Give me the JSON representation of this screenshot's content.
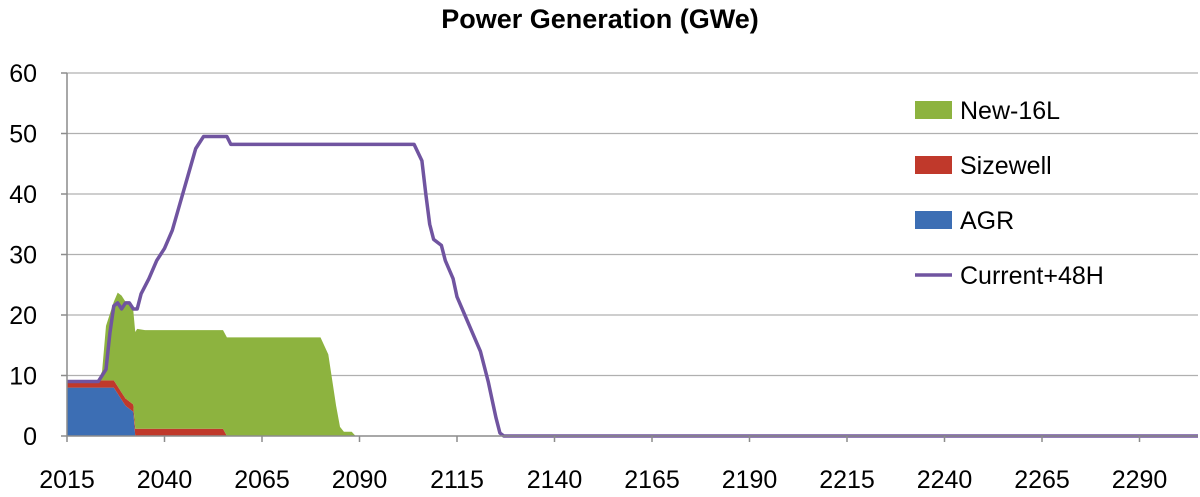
{
  "chart_data": {
    "type": "area",
    "title": "Power Generation (GWe)",
    "xlabel": "",
    "ylabel": "",
    "xlim": [
      2015,
      2305
    ],
    "ylim": [
      0,
      60
    ],
    "x_ticks": [
      2015,
      2040,
      2065,
      2090,
      2115,
      2140,
      2165,
      2190,
      2215,
      2240,
      2265,
      2290
    ],
    "y_ticks": [
      0,
      10,
      20,
      30,
      40,
      50,
      60
    ],
    "grid": "horizontal",
    "legend": "right",
    "series": [
      {
        "name": "AGR",
        "kind": "stacked-area",
        "color": "#3c6eb4",
        "points": [
          [
            2015,
            8
          ],
          [
            2020,
            8
          ],
          [
            2027,
            8
          ],
          [
            2028,
            7
          ],
          [
            2029,
            6
          ],
          [
            2030,
            5
          ],
          [
            2031,
            4.5
          ],
          [
            2032,
            4
          ],
          [
            2032.5,
            0
          ]
        ]
      },
      {
        "name": "Sizewell",
        "kind": "stacked-area",
        "color": "#c0392b",
        "points": [
          [
            2015,
            1.2
          ],
          [
            2020,
            1.2
          ],
          [
            2027,
            1.2
          ],
          [
            2028,
            1.2
          ],
          [
            2029,
            1.2
          ],
          [
            2030,
            1.2
          ],
          [
            2031,
            1.2
          ],
          [
            2032,
            1.2
          ],
          [
            2033,
            1.2
          ],
          [
            2035,
            1.2
          ],
          [
            2040,
            1.2
          ],
          [
            2055,
            1.2
          ],
          [
            2056,
            0
          ]
        ]
      },
      {
        "name": "New-16L",
        "kind": "stacked-area",
        "color": "#8db33f",
        "points": [
          [
            2015,
            0
          ],
          [
            2023,
            0
          ],
          [
            2024,
            1.5
          ],
          [
            2025,
            9
          ],
          [
            2026,
            11
          ],
          [
            2027,
            13
          ],
          [
            2028,
            15.5
          ],
          [
            2029,
            16
          ],
          [
            2030,
            16
          ],
          [
            2031,
            16.5
          ],
          [
            2032,
            15.5
          ],
          [
            2033,
            16.5
          ],
          [
            2035,
            16.3
          ],
          [
            2040,
            16.3
          ],
          [
            2055,
            16.3
          ],
          [
            2056,
            16.3
          ],
          [
            2080,
            16.3
          ],
          [
            2082,
            13.5
          ],
          [
            2084,
            5
          ],
          [
            2085,
            1.5
          ],
          [
            2086,
            0.7
          ],
          [
            2088,
            0.7
          ],
          [
            2089,
            0
          ]
        ]
      },
      {
        "name": "Current+48H",
        "kind": "line",
        "color": "#7054a0",
        "points": [
          [
            2015,
            9
          ],
          [
            2023,
            9
          ],
          [
            2025,
            11
          ],
          [
            2026,
            17
          ],
          [
            2027,
            21.5
          ],
          [
            2028,
            22
          ],
          [
            2029,
            21
          ],
          [
            2030,
            22
          ],
          [
            2031,
            22
          ],
          [
            2032,
            21
          ],
          [
            2033,
            21
          ],
          [
            2034,
            23.5
          ],
          [
            2036,
            26
          ],
          [
            2038,
            29
          ],
          [
            2040,
            31
          ],
          [
            2042,
            34
          ],
          [
            2044,
            38.5
          ],
          [
            2046,
            43
          ],
          [
            2048,
            47.5
          ],
          [
            2050,
            49.5
          ],
          [
            2056,
            49.5
          ],
          [
            2057,
            48.2
          ],
          [
            2060,
            48.2
          ],
          [
            2070,
            48.2
          ],
          [
            2080,
            48.2
          ],
          [
            2090,
            48.2
          ],
          [
            2104,
            48.2
          ],
          [
            2106,
            45.5
          ],
          [
            2107,
            40
          ],
          [
            2108,
            35
          ],
          [
            2109,
            32.5
          ],
          [
            2110,
            32
          ],
          [
            2111,
            31.5
          ],
          [
            2112,
            29
          ],
          [
            2114,
            26
          ],
          [
            2115,
            23
          ],
          [
            2117,
            20
          ],
          [
            2119,
            17
          ],
          [
            2121,
            14
          ],
          [
            2123,
            9
          ],
          [
            2124,
            6
          ],
          [
            2125,
            3
          ],
          [
            2126,
            0.5
          ],
          [
            2127,
            0
          ],
          [
            2305,
            0
          ]
        ]
      }
    ]
  }
}
